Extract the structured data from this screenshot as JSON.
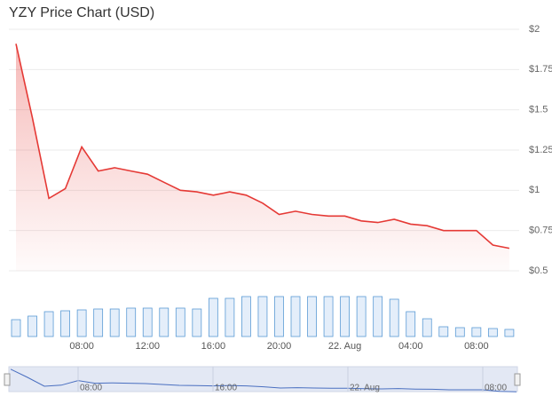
{
  "chart_data": [
    {
      "type": "line",
      "title": "YZY Price Chart (USD)",
      "color": "#e53935",
      "categories": [
        null,
        null,
        null,
        null,
        "08:00",
        null,
        null,
        null,
        "12:00",
        null,
        null,
        null,
        "16:00",
        null,
        null,
        null,
        "20:00",
        null,
        null,
        null,
        "22. Aug",
        null,
        null,
        null,
        "04:00",
        null,
        null,
        null,
        "08:00",
        null,
        null
      ],
      "values": [
        1.91,
        1.45,
        0.95,
        1.01,
        1.27,
        1.12,
        1.14,
        1.12,
        1.1,
        1.05,
        1.0,
        0.99,
        0.97,
        0.99,
        0.97,
        0.92,
        0.85,
        0.87,
        0.85,
        0.84,
        0.84,
        0.81,
        0.8,
        0.82,
        0.79,
        0.78,
        0.75,
        0.75,
        0.75,
        0.66,
        0.64
      ],
      "ylim": [
        0.5,
        2
      ],
      "yticks": [
        {
          "value": 0.5,
          "label": "$0.5"
        },
        {
          "value": 0.75,
          "label": "$0.75"
        },
        {
          "value": 1,
          "label": "$1"
        },
        {
          "value": 1.25,
          "label": "$1.25"
        },
        {
          "value": 1.5,
          "label": "$1.5"
        },
        {
          "value": 1.75,
          "label": "$1.75"
        },
        {
          "value": 2,
          "label": "$2"
        }
      ],
      "grid": true
    },
    {
      "type": "bar",
      "color": "#5b9bd5",
      "values": [
        19,
        23,
        28,
        29,
        30,
        31,
        31,
        32,
        32,
        32,
        32,
        31,
        43,
        43,
        45,
        45,
        45,
        45,
        45,
        45,
        45,
        45,
        45,
        42,
        28,
        20,
        11,
        10,
        10,
        9,
        8
      ],
      "ylim": [
        0,
        48
      ]
    },
    {
      "type": "navigator",
      "color": "#4a6fc0",
      "categories": [
        null,
        null,
        null,
        null,
        "08:00",
        null,
        null,
        null,
        null,
        null,
        null,
        null,
        "16:00",
        null,
        null,
        null,
        null,
        null,
        null,
        null,
        "22. Aug",
        null,
        null,
        null,
        null,
        null,
        null,
        null,
        "08:00",
        null,
        null
      ]
    }
  ]
}
